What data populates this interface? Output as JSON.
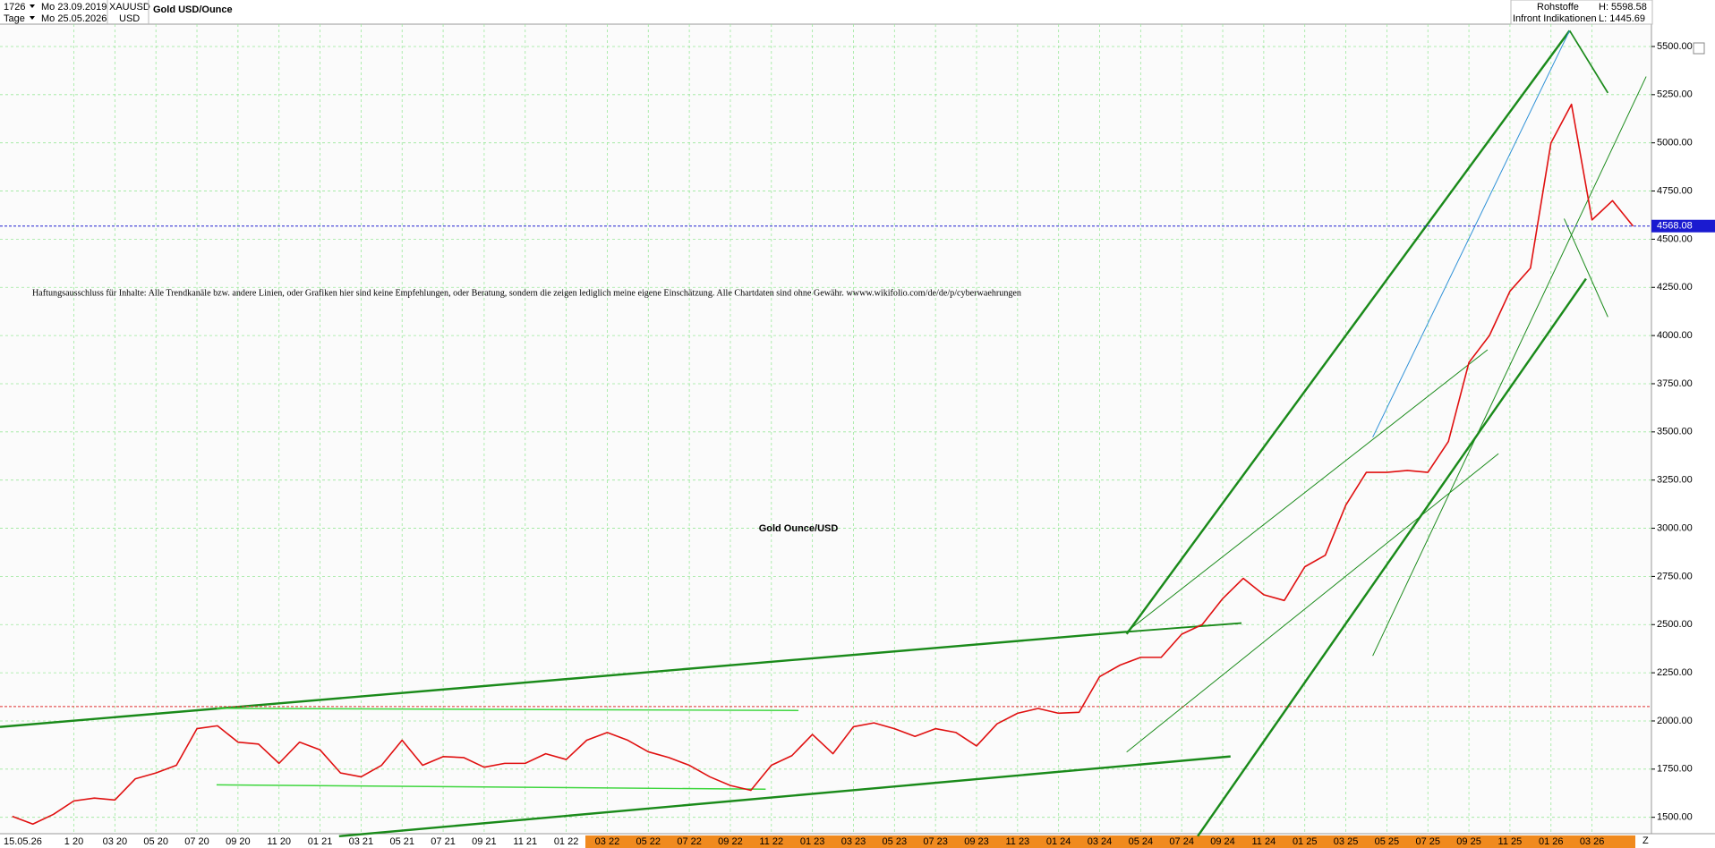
{
  "header": {
    "count": "1726",
    "start_date": "Mo 23.09.2019",
    "symbol": "XAUUSD",
    "period": "Tage",
    "end_date": "Mo 25.05.2026",
    "currency": "USD",
    "group": "Rohstoffe",
    "source": "Infront Indikationen",
    "high": "H: 5598.58",
    "low": "L: 1445.69"
  },
  "chart_data": {
    "type": "line",
    "title": "Gold USD/Ounce",
    "annotation": "Gold Ounce/USD",
    "disclaimer": "Haftungsausschluss für Inhalte: Alle Trendkanäle bzw. andere Linien, oder Grafiken hier sind keine Empfehlungen, oder Beratung, sondern die zeigen lediglich meine eigene Einschätzung. Alle Chartdaten sind ohne Gewähr.  wwww.wikifolio.com/de/de/p/cyberwaehrungen",
    "date_stamp": "15.05.26",
    "corner_label": "Z",
    "categories": [
      null,
      null,
      null,
      "1 20",
      null,
      "03 20",
      null,
      "05 20",
      null,
      "07 20",
      null,
      "09 20",
      null,
      "11 20",
      null,
      "01 21",
      null,
      "03 21",
      null,
      "05 21",
      null,
      "07 21",
      null,
      "09 21",
      null,
      "11 21",
      null,
      "01 22",
      null,
      "03 22",
      null,
      "05 22",
      null,
      "07 22",
      null,
      "09 22",
      null,
      "11 22",
      null,
      "01 23",
      null,
      "03 23",
      null,
      "05 23",
      null,
      "07 23",
      null,
      "09 23",
      null,
      "11 23",
      null,
      "01 24",
      null,
      "03 24",
      null,
      "05 24",
      null,
      "07 24",
      null,
      "09 24",
      null,
      "11 24",
      null,
      "01 25",
      null,
      "03 25",
      null,
      "05 25",
      null,
      "07 25",
      null,
      "09 25",
      null,
      "11 25",
      null,
      "01 26",
      null,
      "03 26",
      null,
      null
    ],
    "series": [
      {
        "name": "XAUUSD",
        "color": "#e01010",
        "values": [
          1505,
          1465,
          1515,
          1585,
          1600,
          1590,
          1700,
          1730,
          1770,
          1960,
          1975,
          1890,
          1880,
          1780,
          1890,
          1850,
          1730,
          1710,
          1770,
          1900,
          1770,
          1815,
          1810,
          1760,
          1780,
          1780,
          1830,
          1800,
          1900,
          1940,
          1900,
          1840,
          1810,
          1770,
          1710,
          1665,
          1640,
          1770,
          1820,
          1930,
          1830,
          1970,
          1990,
          1960,
          1920,
          1960,
          1940,
          1870,
          1985,
          2040,
          2065,
          2040,
          2045,
          2230,
          2290,
          2330,
          2330,
          2450,
          2500,
          2635,
          2740,
          2655,
          2625,
          2800,
          2860,
          3120,
          3290,
          3290,
          3300,
          3290,
          3450,
          3860,
          4000,
          4230,
          4350,
          5000,
          5200,
          4600,
          4700,
          4568.08
        ]
      }
    ],
    "last_price": 4568.08,
    "reference_line": 2075,
    "ylim": [
      1415,
      5602
    ],
    "yticks": [
      {
        "value": 1500,
        "label": "1500.00"
      },
      {
        "value": 1750,
        "label": "1750.00"
      },
      {
        "value": 2000,
        "label": "2000.00"
      },
      {
        "value": 2250,
        "label": "2250.00"
      },
      {
        "value": 2500,
        "label": "2500.00"
      },
      {
        "value": 2750,
        "label": "2750.00"
      },
      {
        "value": 3000,
        "label": "3000.00"
      },
      {
        "value": 3250,
        "label": "3250.00"
      },
      {
        "value": 3500,
        "label": "3500.00"
      },
      {
        "value": 3750,
        "label": "3750.00"
      },
      {
        "value": 4000,
        "label": "4000.00"
      },
      {
        "value": 4250,
        "label": "4250.00"
      },
      {
        "value": 4500,
        "label": "4500.00"
      },
      {
        "value": 4750,
        "label": "4750.00"
      },
      {
        "value": 5000,
        "label": "5000.00"
      },
      {
        "value": 5250,
        "label": "5250.00"
      },
      {
        "value": 5500,
        "label": "5500.00"
      }
    ],
    "grid": true
  }
}
